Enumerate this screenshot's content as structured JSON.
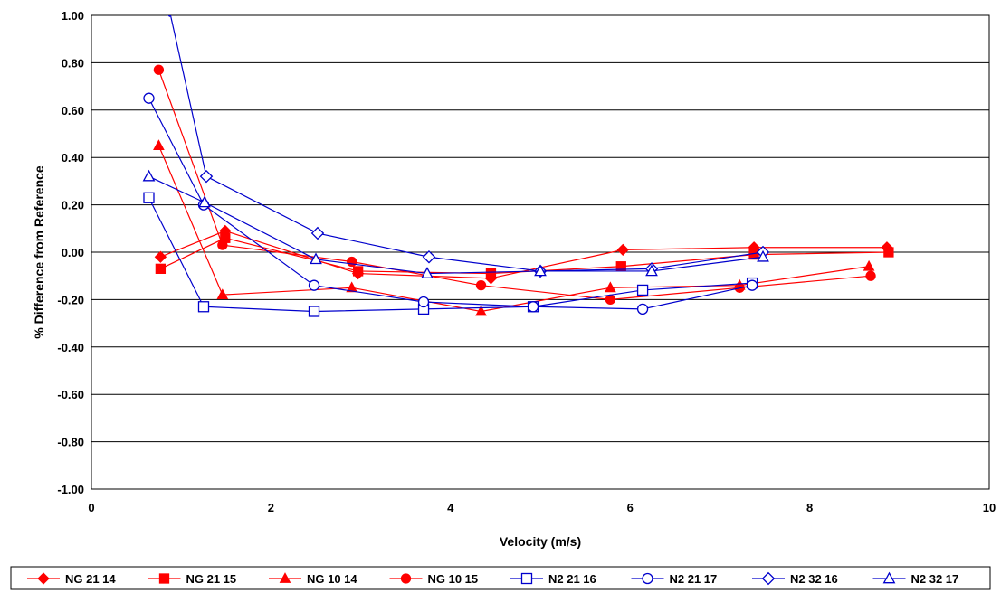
{
  "chart_data": {
    "type": "scatter",
    "title": "",
    "xlabel": "Velocity (m/s)",
    "ylabel": "% Difference from Reference",
    "xlim": [
      0,
      10
    ],
    "ylim": [
      -1.0,
      1.0
    ],
    "x_ticks": [
      "0",
      "2",
      "4",
      "6",
      "8",
      "10"
    ],
    "y_ticks": [
      "1.00",
      "0.80",
      "0.60",
      "0.40",
      "0.20",
      "0.00",
      "-0.20",
      "-0.40",
      "-0.60",
      "-0.80",
      "-1.00"
    ],
    "grid": "horizontal",
    "legend_position": "bottom",
    "series": [
      {
        "name": "NG 21 14",
        "color": "#ff0000",
        "marker": "diamond",
        "filled": true,
        "x": [
          0.77,
          1.49,
          2.97,
          4.45,
          5.92,
          7.38,
          8.86
        ],
        "y": [
          -0.02,
          0.09,
          -0.09,
          -0.11,
          0.01,
          0.02,
          0.02
        ]
      },
      {
        "name": "NG 21 15",
        "color": "#ff0000",
        "marker": "square",
        "filled": true,
        "x": [
          0.77,
          1.49,
          2.97,
          4.45,
          5.9,
          7.38,
          8.88
        ],
        "y": [
          -0.07,
          0.06,
          -0.08,
          -0.09,
          -0.06,
          -0.01,
          0.0
        ]
      },
      {
        "name": "NG 10 14",
        "color": "#ff0000",
        "marker": "triangle",
        "filled": true,
        "x": [
          0.75,
          1.46,
          2.9,
          4.34,
          5.78,
          7.22,
          8.66
        ],
        "y": [
          0.45,
          -0.18,
          -0.15,
          -0.25,
          -0.15,
          -0.14,
          -0.06
        ]
      },
      {
        "name": "NG 10 15",
        "color": "#ff0000",
        "marker": "circle",
        "filled": true,
        "x": [
          0.75,
          1.46,
          2.9,
          4.34,
          5.78,
          7.22,
          8.68
        ],
        "y": [
          0.77,
          0.03,
          -0.04,
          -0.14,
          -0.2,
          -0.15,
          -0.1
        ]
      },
      {
        "name": "N2 21 16",
        "color": "#0000cc",
        "marker": "square",
        "filled": false,
        "x": [
          0.64,
          1.25,
          2.48,
          3.7,
          4.92,
          6.14,
          7.36
        ],
        "y": [
          0.23,
          -0.23,
          -0.25,
          -0.24,
          -0.23,
          -0.16,
          -0.13
        ]
      },
      {
        "name": "N2 21 17",
        "color": "#0000cc",
        "marker": "circle",
        "filled": false,
        "x": [
          0.64,
          1.25,
          2.48,
          3.7,
          4.92,
          6.14,
          7.36
        ],
        "y": [
          0.65,
          0.2,
          -0.14,
          -0.21,
          -0.23,
          -0.24,
          -0.14
        ]
      },
      {
        "name": "N2 32 16",
        "color": "#0000cc",
        "marker": "diamond",
        "filled": false,
        "x": [
          0.87,
          1.28,
          2.52,
          3.76,
          5.0,
          6.24,
          7.48
        ],
        "y": [
          1.02,
          0.32,
          0.08,
          -0.02,
          -0.08,
          -0.07,
          0.0
        ]
      },
      {
        "name": "N2 32 17",
        "color": "#0000cc",
        "marker": "triangle",
        "filled": false,
        "x": [
          0.64,
          1.26,
          2.5,
          3.74,
          5.0,
          6.24,
          7.48
        ],
        "y": [
          0.32,
          0.21,
          -0.03,
          -0.09,
          -0.08,
          -0.08,
          -0.02
        ]
      }
    ]
  }
}
